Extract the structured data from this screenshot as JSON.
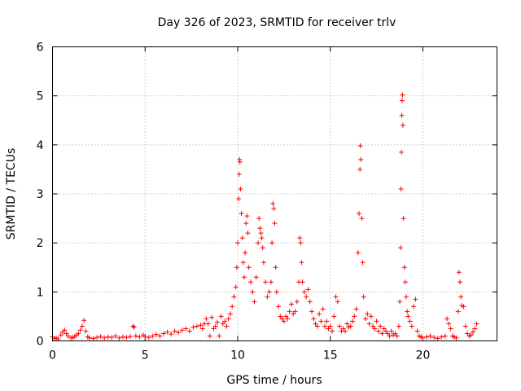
{
  "chart_data": {
    "type": "scatter",
    "title": "Day 326 of 2023, SRMTID for receiver trlv",
    "xlabel": "GPS time / hours",
    "ylabel": "SRMTID / TECUs",
    "xlim": [
      0,
      24
    ],
    "ylim": [
      0,
      6
    ],
    "x_ticks": [
      0,
      5,
      10,
      15,
      20
    ],
    "y_ticks": [
      0,
      1,
      2,
      3,
      4,
      5,
      6
    ],
    "grid": true,
    "marker": "+",
    "color": "#ff0000",
    "series": [
      {
        "name": "SRMTID",
        "points": [
          [
            0.0,
            0.08
          ],
          [
            0.1,
            0.05
          ],
          [
            0.2,
            0.06
          ],
          [
            0.3,
            0.04
          ],
          [
            0.45,
            0.12
          ],
          [
            0.55,
            0.18
          ],
          [
            0.65,
            0.22
          ],
          [
            0.75,
            0.15
          ],
          [
            0.85,
            0.1
          ],
          [
            1.0,
            0.06
          ],
          [
            1.1,
            0.07
          ],
          [
            1.2,
            0.09
          ],
          [
            1.3,
            0.12
          ],
          [
            1.4,
            0.15
          ],
          [
            1.5,
            0.22
          ],
          [
            1.6,
            0.3
          ],
          [
            1.7,
            0.42
          ],
          [
            1.8,
            0.2
          ],
          [
            1.9,
            0.08
          ],
          [
            2.0,
            0.06
          ],
          [
            2.2,
            0.05
          ],
          [
            2.4,
            0.07
          ],
          [
            2.6,
            0.09
          ],
          [
            2.8,
            0.06
          ],
          [
            3.0,
            0.08
          ],
          [
            3.2,
            0.07
          ],
          [
            3.4,
            0.1
          ],
          [
            3.6,
            0.06
          ],
          [
            3.8,
            0.08
          ],
          [
            4.0,
            0.07
          ],
          [
            4.2,
            0.09
          ],
          [
            4.35,
            0.3
          ],
          [
            4.4,
            0.28
          ],
          [
            4.5,
            0.1
          ],
          [
            4.7,
            0.08
          ],
          [
            4.9,
            0.12
          ],
          [
            5.0,
            0.09
          ],
          [
            5.2,
            0.07
          ],
          [
            5.4,
            0.1
          ],
          [
            5.6,
            0.13
          ],
          [
            5.8,
            0.1
          ],
          [
            6.0,
            0.15
          ],
          [
            6.2,
            0.18
          ],
          [
            6.4,
            0.14
          ],
          [
            6.6,
            0.2
          ],
          [
            6.8,
            0.17
          ],
          [
            7.0,
            0.22
          ],
          [
            7.2,
            0.25
          ],
          [
            7.4,
            0.2
          ],
          [
            7.6,
            0.28
          ],
          [
            7.8,
            0.3
          ],
          [
            8.0,
            0.32
          ],
          [
            8.1,
            0.25
          ],
          [
            8.2,
            0.35
          ],
          [
            8.3,
            0.45
          ],
          [
            8.4,
            0.35
          ],
          [
            8.5,
            0.1
          ],
          [
            8.6,
            0.48
          ],
          [
            8.7,
            0.25
          ],
          [
            8.8,
            0.3
          ],
          [
            8.9,
            0.38
          ],
          [
            9.0,
            0.1
          ],
          [
            9.1,
            0.5
          ],
          [
            9.2,
            0.35
          ],
          [
            9.3,
            0.4
          ],
          [
            9.4,
            0.3
          ],
          [
            9.5,
            0.45
          ],
          [
            9.6,
            0.55
          ],
          [
            9.7,
            0.7
          ],
          [
            9.8,
            0.9
          ],
          [
            9.9,
            1.1
          ],
          [
            9.95,
            1.5
          ],
          [
            10.0,
            2.0
          ],
          [
            10.05,
            2.9
          ],
          [
            10.08,
            3.4
          ],
          [
            10.1,
            3.7
          ],
          [
            10.12,
            3.65
          ],
          [
            10.15,
            3.1
          ],
          [
            10.2,
            2.6
          ],
          [
            10.25,
            2.1
          ],
          [
            10.3,
            1.6
          ],
          [
            10.35,
            1.3
          ],
          [
            10.4,
            1.8
          ],
          [
            10.45,
            2.4
          ],
          [
            10.5,
            2.55
          ],
          [
            10.55,
            2.2
          ],
          [
            10.6,
            1.5
          ],
          [
            10.7,
            1.2
          ],
          [
            10.8,
            1.0
          ],
          [
            10.9,
            0.8
          ],
          [
            11.0,
            1.3
          ],
          [
            11.1,
            2.0
          ],
          [
            11.15,
            2.5
          ],
          [
            11.2,
            2.3
          ],
          [
            11.25,
            2.2
          ],
          [
            11.3,
            2.1
          ],
          [
            11.35,
            1.9
          ],
          [
            11.4,
            1.6
          ],
          [
            11.5,
            1.2
          ],
          [
            11.6,
            0.9
          ],
          [
            11.7,
            1.0
          ],
          [
            11.8,
            1.2
          ],
          [
            11.85,
            2.0
          ],
          [
            11.9,
            2.8
          ],
          [
            11.95,
            2.7
          ],
          [
            12.0,
            2.4
          ],
          [
            12.05,
            1.5
          ],
          [
            12.1,
            1.0
          ],
          [
            12.2,
            0.7
          ],
          [
            12.3,
            0.5
          ],
          [
            12.4,
            0.45
          ],
          [
            12.5,
            0.4
          ],
          [
            12.6,
            0.5
          ],
          [
            12.7,
            0.45
          ],
          [
            12.8,
            0.6
          ],
          [
            12.9,
            0.75
          ],
          [
            13.0,
            0.55
          ],
          [
            13.1,
            0.6
          ],
          [
            13.2,
            0.8
          ],
          [
            13.3,
            1.2
          ],
          [
            13.35,
            2.1
          ],
          [
            13.4,
            2.0
          ],
          [
            13.45,
            1.6
          ],
          [
            13.5,
            1.2
          ],
          [
            13.6,
            1.0
          ],
          [
            13.7,
            0.9
          ],
          [
            13.8,
            1.05
          ],
          [
            13.9,
            0.8
          ],
          [
            14.0,
            0.6
          ],
          [
            14.1,
            0.45
          ],
          [
            14.2,
            0.35
          ],
          [
            14.3,
            0.3
          ],
          [
            14.4,
            0.55
          ],
          [
            14.5,
            0.4
          ],
          [
            14.6,
            0.65
          ],
          [
            14.7,
            0.3
          ],
          [
            14.8,
            0.4
          ],
          [
            14.9,
            0.25
          ],
          [
            15.0,
            0.3
          ],
          [
            15.1,
            0.2
          ],
          [
            15.2,
            0.5
          ],
          [
            15.3,
            0.9
          ],
          [
            15.4,
            0.8
          ],
          [
            15.5,
            0.3
          ],
          [
            15.6,
            0.2
          ],
          [
            15.7,
            0.25
          ],
          [
            15.8,
            0.2
          ],
          [
            15.9,
            0.35
          ],
          [
            16.0,
            0.28
          ],
          [
            16.1,
            0.3
          ],
          [
            16.2,
            0.4
          ],
          [
            16.3,
            0.5
          ],
          [
            16.4,
            0.65
          ],
          [
            16.5,
            1.8
          ],
          [
            16.55,
            2.6
          ],
          [
            16.6,
            3.5
          ],
          [
            16.62,
            3.98
          ],
          [
            16.65,
            3.7
          ],
          [
            16.7,
            2.5
          ],
          [
            16.75,
            1.6
          ],
          [
            16.8,
            0.9
          ],
          [
            16.9,
            0.45
          ],
          [
            17.0,
            0.55
          ],
          [
            17.1,
            0.35
          ],
          [
            17.2,
            0.5
          ],
          [
            17.3,
            0.3
          ],
          [
            17.4,
            0.25
          ],
          [
            17.5,
            0.4
          ],
          [
            17.6,
            0.2
          ],
          [
            17.7,
            0.3
          ],
          [
            17.8,
            0.15
          ],
          [
            17.9,
            0.25
          ],
          [
            18.0,
            0.2
          ],
          [
            18.1,
            0.15
          ],
          [
            18.2,
            0.1
          ],
          [
            18.3,
            0.2
          ],
          [
            18.4,
            0.12
          ],
          [
            18.5,
            0.15
          ],
          [
            18.6,
            0.1
          ],
          [
            18.7,
            0.3
          ],
          [
            18.75,
            0.8
          ],
          [
            18.8,
            1.9
          ],
          [
            18.82,
            3.1
          ],
          [
            18.84,
            3.85
          ],
          [
            18.86,
            4.6
          ],
          [
            18.88,
            4.9
          ],
          [
            18.9,
            5.02
          ],
          [
            18.92,
            4.4
          ],
          [
            18.95,
            2.5
          ],
          [
            19.0,
            1.5
          ],
          [
            19.05,
            1.2
          ],
          [
            19.1,
            0.9
          ],
          [
            19.15,
            0.6
          ],
          [
            19.2,
            0.5
          ],
          [
            19.3,
            0.4
          ],
          [
            19.4,
            0.3
          ],
          [
            19.5,
            0.7
          ],
          [
            19.6,
            0.85
          ],
          [
            19.7,
            0.2
          ],
          [
            19.8,
            0.1
          ],
          [
            19.9,
            0.08
          ],
          [
            20.0,
            0.06
          ],
          [
            20.2,
            0.08
          ],
          [
            20.4,
            0.1
          ],
          [
            20.6,
            0.07
          ],
          [
            20.8,
            0.05
          ],
          [
            21.0,
            0.08
          ],
          [
            21.2,
            0.1
          ],
          [
            21.3,
            0.45
          ],
          [
            21.4,
            0.35
          ],
          [
            21.5,
            0.25
          ],
          [
            21.6,
            0.1
          ],
          [
            21.7,
            0.08
          ],
          [
            21.8,
            0.06
          ],
          [
            21.9,
            0.6
          ],
          [
            21.95,
            1.4
          ],
          [
            22.0,
            1.2
          ],
          [
            22.05,
            0.9
          ],
          [
            22.1,
            0.72
          ],
          [
            22.2,
            0.7
          ],
          [
            22.3,
            0.3
          ],
          [
            22.4,
            0.15
          ],
          [
            22.5,
            0.1
          ],
          [
            22.6,
            0.12
          ],
          [
            22.7,
            0.18
          ],
          [
            22.8,
            0.25
          ],
          [
            22.9,
            0.35
          ]
        ]
      }
    ]
  }
}
